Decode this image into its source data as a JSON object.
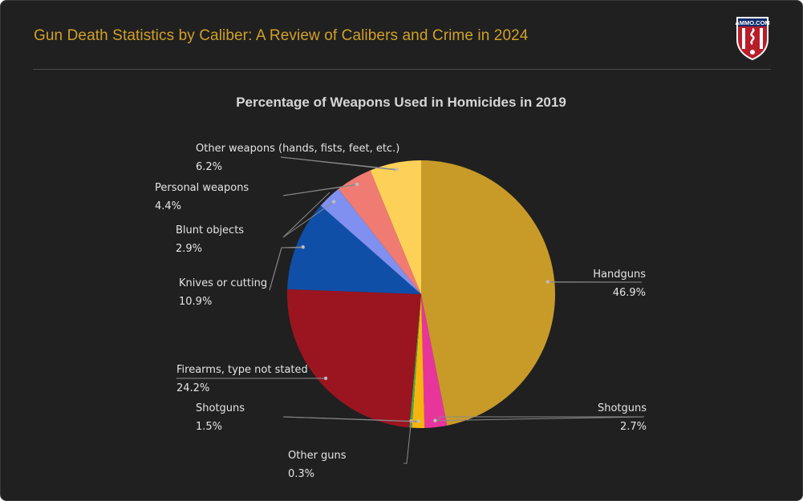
{
  "header": {
    "title": "Gun Death Statistics by Caliber: A Review of Calibers and Crime in 2024",
    "logo_text": "AMMO.COM"
  },
  "colors": {
    "background": "#202020",
    "title_color": "#d0a028",
    "leader_line": "#8a8a8a"
  },
  "chart_data": {
    "type": "pie",
    "title": "Percentage of Weapons Used in Homicides in 2019",
    "start_angle_deg": 0,
    "direction": "clockwise",
    "slices": [
      {
        "label": "Handguns",
        "value": 46.9,
        "display": "46.9%",
        "color": "#c89b28"
      },
      {
        "label": "Shotguns",
        "value": 2.7,
        "display": "2.7%",
        "color": "#e8359c"
      },
      {
        "label": "Shotguns",
        "value": 1.5,
        "display": "1.5%",
        "color": "#f5b50e"
      },
      {
        "label": "Other guns",
        "value": 0.3,
        "display": "0.3%",
        "color": "#3faa4a"
      },
      {
        "label": "Firearms, type not stated",
        "value": 24.2,
        "display": "24.2%",
        "color": "#9a1520"
      },
      {
        "label": "Knives or cutting",
        "value": 10.9,
        "display": "10.9%",
        "color": "#0f4fa8"
      },
      {
        "label": "Blunt objects",
        "value": 2.9,
        "display": "2.9%",
        "color": "#8090f0"
      },
      {
        "label": "Personal weapons",
        "value": 4.4,
        "display": "4.4%",
        "color": "#ef7b72"
      },
      {
        "label": "Other weapons (hands, fists, feet, etc.)",
        "value": 6.2,
        "display": "6.2%",
        "color": "#fdd158"
      }
    ]
  }
}
